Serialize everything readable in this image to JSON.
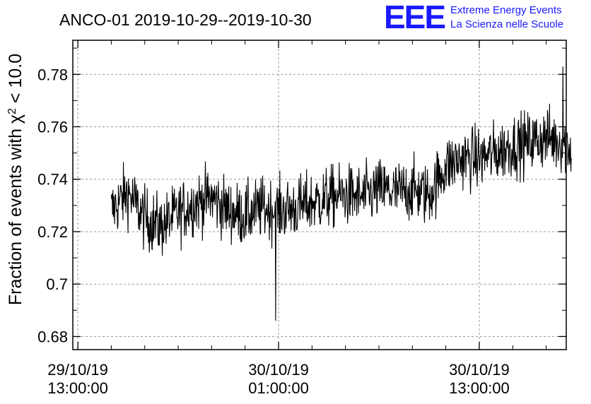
{
  "logo": {
    "mark": "EEE",
    "line1": "Extreme Energy Events",
    "line2": "La Scienza nelle Scuole",
    "color": "#1a1aff"
  },
  "chart_data": {
    "type": "line",
    "title": "ANCO-01 2019-10-29--2019-10-30",
    "ylabel": "Fraction of events with χ² < 10.0",
    "ylabel_parts": {
      "before": "Fraction of events with χ",
      "sup": "2",
      "after": " < 10.0"
    },
    "xlabel": "",
    "ylim": [
      0.675,
      0.793
    ],
    "xlim_hours_from_first_tick": [
      -0.3,
      29.2
    ],
    "yticks": [
      0.68,
      0.7,
      0.72,
      0.74,
      0.76,
      0.78
    ],
    "ytick_labels": [
      "0.68",
      "0.7",
      "0.72",
      "0.74",
      "0.76",
      "0.78"
    ],
    "xticks": [
      {
        "line1": "29/10/19",
        "line2": "13:00:00"
      },
      {
        "line1": "30/10/19",
        "line2": "01:00:00"
      },
      {
        "line1": "30/10/19",
        "line2": "13:00:00"
      }
    ],
    "grid": true,
    "line_color": "#000000",
    "series": [
      {
        "x_start": "2019-10-29 15:00:00",
        "x_end": "2019-10-30 18:30:00",
        "trend_points": [
          [
            "2019-10-29 15:00:00",
            0.728
          ],
          [
            "2019-10-29 16:00:00",
            0.735
          ],
          [
            "2019-10-29 17:00:00",
            0.725
          ],
          [
            "2019-10-29 18:00:00",
            0.722
          ],
          [
            "2019-10-29 19:00:00",
            0.727
          ],
          [
            "2019-10-29 20:00:00",
            0.731
          ],
          [
            "2019-10-29 21:00:00",
            0.733
          ],
          [
            "2019-10-29 22:00:00",
            0.728
          ],
          [
            "2019-10-29 23:00:00",
            0.726
          ],
          [
            "2019-10-30 00:00:00",
            0.729
          ],
          [
            "2019-10-30 01:00:00",
            0.728
          ],
          [
            "2019-10-30 02:00:00",
            0.729
          ],
          [
            "2019-10-30 03:00:00",
            0.731
          ],
          [
            "2019-10-30 04:00:00",
            0.733
          ],
          [
            "2019-10-30 05:00:00",
            0.734
          ],
          [
            "2019-10-30 06:00:00",
            0.733
          ],
          [
            "2019-10-30 07:00:00",
            0.736
          ],
          [
            "2019-10-30 08:00:00",
            0.735
          ],
          [
            "2019-10-30 09:00:00",
            0.736
          ],
          [
            "2019-10-30 10:00:00",
            0.734
          ],
          [
            "2019-10-30 11:00:00",
            0.745
          ],
          [
            "2019-10-30 12:00:00",
            0.748
          ],
          [
            "2019-10-30 13:00:00",
            0.748
          ],
          [
            "2019-10-30 14:00:00",
            0.75
          ],
          [
            "2019-10-30 15:00:00",
            0.753
          ],
          [
            "2019-10-30 16:00:00",
            0.754
          ],
          [
            "2019-10-30 17:00:00",
            0.756
          ],
          [
            "2019-10-30 18:00:00",
            0.754
          ],
          [
            "2019-10-30 18:30:00",
            0.752
          ]
        ],
        "min_value": 0.686,
        "min_time": "2019-10-30 00:50:00",
        "max_value": 0.783,
        "max_time": "2019-10-30 18:00:00"
      }
    ]
  }
}
